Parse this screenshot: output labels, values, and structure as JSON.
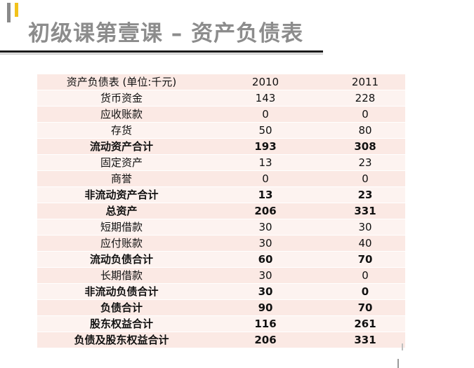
{
  "slide": {
    "title": "初级课第壹课 – 资产负债表"
  },
  "table": {
    "header": {
      "label": "资产负债表 (单位:千元)",
      "y2010": "2010",
      "y2011": "2011"
    },
    "rows": [
      {
        "label": "货币资金",
        "y2010": "143",
        "y2011": "228",
        "bold": false
      },
      {
        "label": "应收账款",
        "y2010": "0",
        "y2011": "0",
        "bold": false
      },
      {
        "label": "存货",
        "y2010": "50",
        "y2011": "80",
        "bold": false
      },
      {
        "label": "流动资产合计",
        "y2010": "193",
        "y2011": "308",
        "bold": true
      },
      {
        "label": "固定资产",
        "y2010": "13",
        "y2011": "23",
        "bold": false
      },
      {
        "label": "商誉",
        "y2010": "0",
        "y2011": "0",
        "bold": false
      },
      {
        "label": "非流动资产合计",
        "y2010": "13",
        "y2011": "23",
        "bold": true
      },
      {
        "label": "总资产",
        "y2010": "206",
        "y2011": "331",
        "bold": true
      },
      {
        "label": "短期借款",
        "y2010": "30",
        "y2011": "30",
        "bold": false
      },
      {
        "label": "应付账款",
        "y2010": "30",
        "y2011": "40",
        "bold": false
      },
      {
        "label": "流动负债合计",
        "y2010": "60",
        "y2011": "70",
        "bold": true
      },
      {
        "label": "长期借款",
        "y2010": "30",
        "y2011": "0",
        "bold": false
      },
      {
        "label": "非流动负债合计",
        "y2010": "30",
        "y2011": "0",
        "bold": true
      },
      {
        "label": "负债合计",
        "y2010": "90",
        "y2011": "70",
        "bold": true
      },
      {
        "label": "股东权益合计",
        "y2010": "116",
        "y2011": "261",
        "bold": true
      },
      {
        "label": "负债及股东权益合计",
        "y2010": "206",
        "y2011": "331",
        "bold": true
      }
    ]
  },
  "colors": {
    "accent_gold": "#f2c21b",
    "title_gray": "#8c8c8c",
    "row_fill": "#fbe9e4"
  }
}
